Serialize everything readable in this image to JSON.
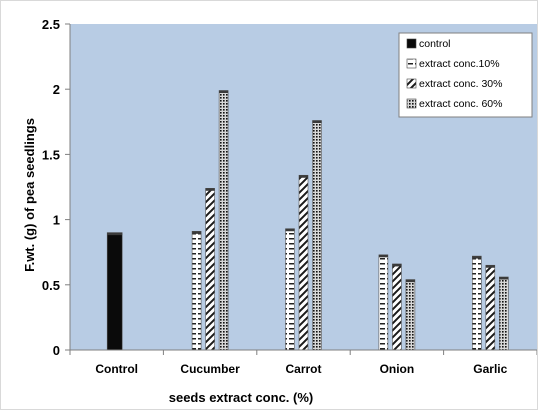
{
  "chart_data": {
    "type": "bar",
    "title": "",
    "xlabel": "seeds extract  conc. (%)",
    "ylabel": "F.wt. (g)  of pea seedlings",
    "ylim": [
      0,
      2.5
    ],
    "yticks": [
      "0",
      "0.5",
      "1",
      "1.5",
      "2",
      "2.5"
    ],
    "categories": [
      "Control",
      "Cucumber",
      "Carrot",
      "Onion",
      "Garlic"
    ],
    "series": [
      {
        "name": "control",
        "values": [
          0.9,
          null,
          null,
          null,
          null
        ],
        "pattern": "solid-black"
      },
      {
        "name": "extract conc.10%",
        "values": [
          null,
          0.91,
          0.93,
          0.73,
          0.72
        ],
        "pattern": "horizontal-dashes"
      },
      {
        "name": "extract conc. 30%",
        "values": [
          null,
          1.24,
          1.34,
          0.66,
          0.65
        ],
        "pattern": "diagonal-stripes"
      },
      {
        "name": "extract conc. 60%",
        "values": [
          null,
          1.99,
          1.76,
          0.54,
          0.56
        ],
        "pattern": "dense-dots"
      }
    ],
    "plot_background": "#b8cce4",
    "grid": false,
    "legend_position": "top-right"
  }
}
